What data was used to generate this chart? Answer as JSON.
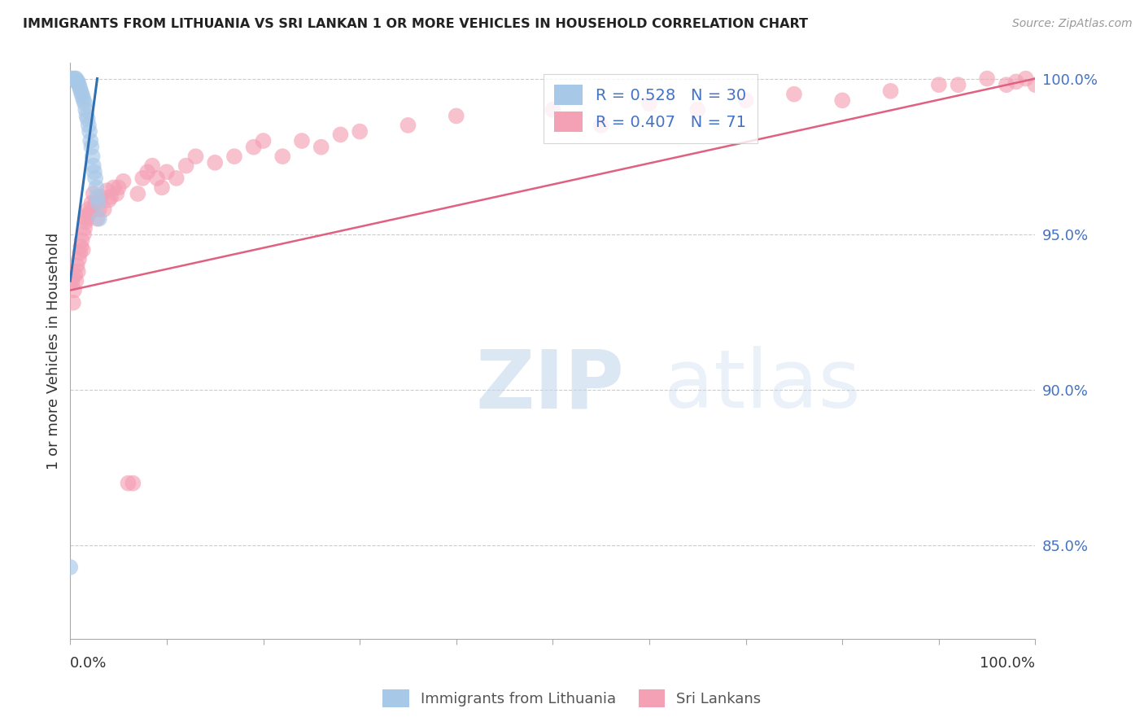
{
  "title": "IMMIGRANTS FROM LITHUANIA VS SRI LANKAN 1 OR MORE VEHICLES IN HOUSEHOLD CORRELATION CHART",
  "source": "Source: ZipAtlas.com",
  "ylabel": "1 or more Vehicles in Household",
  "xlim": [
    0.0,
    1.0
  ],
  "ylim": [
    0.82,
    1.005
  ],
  "yticks": [
    0.85,
    0.9,
    0.95,
    1.0
  ],
  "ytick_labels": [
    "85.0%",
    "90.0%",
    "95.0%",
    "100.0%"
  ],
  "color_blue": "#a8c8e8",
  "color_pink": "#f4a0b5",
  "line_blue": "#3070b0",
  "line_pink": "#e06080",
  "background": "#ffffff",
  "lithuania_x": [
    0.001,
    0.003,
    0.005,
    0.006,
    0.007,
    0.007,
    0.008,
    0.009,
    0.01,
    0.011,
    0.012,
    0.013,
    0.014,
    0.015,
    0.016,
    0.017,
    0.018,
    0.019,
    0.02,
    0.021,
    0.022,
    0.023,
    0.024,
    0.025,
    0.026,
    0.027,
    0.028,
    0.029,
    0.03,
    0.0
  ],
  "lithuania_y": [
    1.0,
    1.0,
    1.0,
    1.0,
    0.999,
    0.999,
    0.999,
    0.998,
    0.997,
    0.996,
    0.995,
    0.994,
    0.993,
    0.992,
    0.99,
    0.988,
    0.987,
    0.985,
    0.983,
    0.98,
    0.978,
    0.975,
    0.972,
    0.97,
    0.968,
    0.965,
    0.962,
    0.96,
    0.955,
    0.843
  ],
  "srilanka_x": [
    0.002,
    0.003,
    0.004,
    0.005,
    0.006,
    0.007,
    0.008,
    0.009,
    0.01,
    0.011,
    0.012,
    0.013,
    0.014,
    0.015,
    0.016,
    0.017,
    0.018,
    0.019,
    0.02,
    0.022,
    0.024,
    0.026,
    0.028,
    0.03,
    0.032,
    0.035,
    0.038,
    0.04,
    0.042,
    0.045,
    0.048,
    0.05,
    0.055,
    0.06,
    0.065,
    0.07,
    0.075,
    0.08,
    0.085,
    0.09,
    0.095,
    0.1,
    0.11,
    0.12,
    0.13,
    0.15,
    0.17,
    0.19,
    0.2,
    0.22,
    0.24,
    0.26,
    0.28,
    0.3,
    0.35,
    0.4,
    0.5,
    0.55,
    0.6,
    0.65,
    0.7,
    0.75,
    0.8,
    0.85,
    0.9,
    0.92,
    0.95,
    0.97,
    0.98,
    0.99,
    1.0
  ],
  "srilanka_y": [
    0.935,
    0.928,
    0.932,
    0.937,
    0.935,
    0.94,
    0.938,
    0.942,
    0.944,
    0.946,
    0.948,
    0.945,
    0.95,
    0.952,
    0.954,
    0.955,
    0.956,
    0.958,
    0.957,
    0.96,
    0.963,
    0.96,
    0.955,
    0.958,
    0.962,
    0.958,
    0.964,
    0.961,
    0.962,
    0.965,
    0.963,
    0.965,
    0.967,
    0.87,
    0.87,
    0.963,
    0.968,
    0.97,
    0.972,
    0.968,
    0.965,
    0.97,
    0.968,
    0.972,
    0.975,
    0.973,
    0.975,
    0.978,
    0.98,
    0.975,
    0.98,
    0.978,
    0.982,
    0.983,
    0.985,
    0.988,
    0.99,
    0.985,
    0.992,
    0.99,
    0.993,
    0.995,
    0.993,
    0.996,
    0.998,
    0.998,
    1.0,
    0.998,
    0.999,
    1.0,
    0.998
  ],
  "pink_line_x0": 0.0,
  "pink_line_y0": 0.932,
  "pink_line_x1": 1.0,
  "pink_line_y1": 1.0,
  "blue_line_x0": 0.0,
  "blue_line_y0": 0.935,
  "blue_line_x1": 0.028,
  "blue_line_y1": 1.0
}
